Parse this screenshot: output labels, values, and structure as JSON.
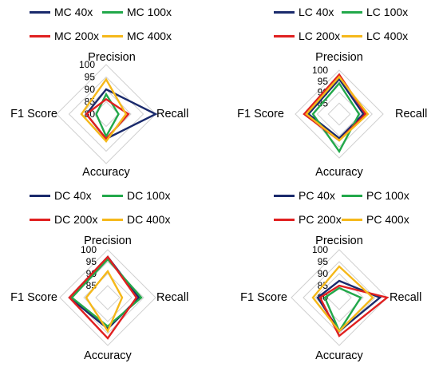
{
  "colors": {
    "s40": "#1a2a6c",
    "s100": "#22a84a",
    "s200": "#e02020",
    "s400": "#f5b81a",
    "grid": "#d0d0d0"
  },
  "chart_data": [
    {
      "type": "radar",
      "axes": [
        "Precision",
        "Recall",
        "Accuracy",
        "F1 Score"
      ],
      "range": [
        80,
        100
      ],
      "ticks": [
        "100",
        "95",
        "90",
        "85",
        "80"
      ],
      "series": [
        {
          "name": "MC 40x",
          "values": [
            90,
            100,
            90,
            88
          ]
        },
        {
          "name": "MC 100x",
          "values": [
            88,
            85,
            89,
            84
          ]
        },
        {
          "name": "MC 200x",
          "values": [
            86,
            89,
            90,
            88
          ]
        },
        {
          "name": "MC 400x",
          "values": [
            94,
            88,
            91,
            90
          ]
        }
      ]
    },
    {
      "type": "radar",
      "axes": [
        "Precision",
        "Recall",
        "Accuracy",
        "F1 Score"
      ],
      "range": [
        80,
        100
      ],
      "ticks": [
        "100",
        "95",
        "90",
        "85"
      ],
      "series": [
        {
          "name": "LC 40x",
          "values": [
            96,
            91,
            91,
            94
          ]
        },
        {
          "name": "LC 100x",
          "values": [
            94,
            89,
            97,
            92
          ]
        },
        {
          "name": "LC 200x",
          "values": [
            98,
            92,
            92,
            96
          ]
        },
        {
          "name": "LC 400x",
          "values": [
            97,
            93,
            92,
            95
          ]
        }
      ]
    },
    {
      "type": "radar",
      "axes": [
        "Precision",
        "Recall",
        "Accuracy",
        "F1 Score"
      ],
      "range": [
        80,
        100
      ],
      "ticks": [
        "100",
        "95",
        "90",
        "85"
      ],
      "series": [
        {
          "name": "DC 40x",
          "values": [
            97,
            93,
            93,
            96
          ]
        },
        {
          "name": "DC 100x",
          "values": [
            96,
            94,
            92,
            95
          ]
        },
        {
          "name": "DC 200x",
          "values": [
            97,
            92,
            97,
            96
          ]
        },
        {
          "name": "DC 400x",
          "values": [
            91,
            86,
            94,
            89
          ]
        }
      ]
    },
    {
      "type": "radar",
      "axes": [
        "Precision",
        "Recall",
        "Accuracy",
        "F1 Score"
      ],
      "range": [
        80,
        100
      ],
      "ticks": [
        "100",
        "95",
        "90",
        "85",
        "80"
      ],
      "series": [
        {
          "name": "PC 40x",
          "values": [
            87,
            97,
            94,
            89
          ]
        },
        {
          "name": "PC 100x",
          "values": [
            84,
            89,
            94,
            86
          ]
        },
        {
          "name": "PC 200x",
          "values": [
            85,
            100,
            96,
            88
          ]
        },
        {
          "name": "PC 400x",
          "values": [
            93,
            94,
            94,
            91
          ]
        }
      ]
    }
  ]
}
